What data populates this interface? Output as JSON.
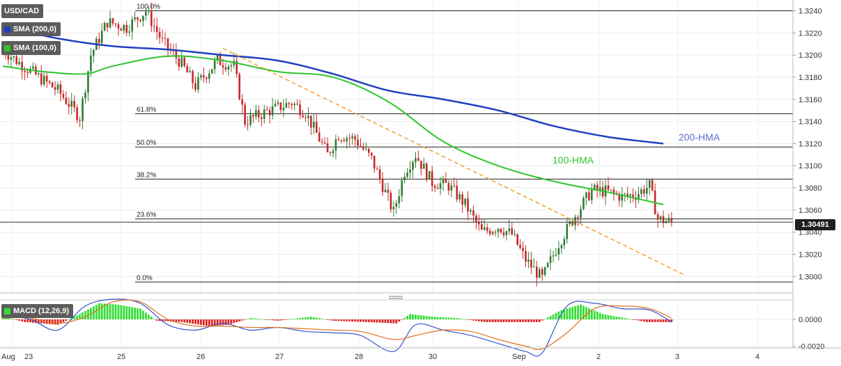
{
  "chart_data": {
    "type": "candlestick",
    "symbol": "USD/CAD",
    "indicators": {
      "sma200": "SMA (200,0)",
      "sma100": "SMA (100,0)",
      "macd": "MACD (12,26,9)"
    },
    "x_ticks": [
      "Aug",
      "23",
      "25",
      "26",
      "27",
      "28",
      "30",
      "Sep",
      "2",
      "3",
      "4"
    ],
    "y_ticks": [
      "1.3240",
      "1.3220",
      "1.3200",
      "1.3180",
      "1.3160",
      "1.3140",
      "1.3120",
      "1.3100",
      "1.3080",
      "1.3060",
      "1.3040",
      "1.3020",
      "1.3000"
    ],
    "ylim": [
      1.2989,
      1.3254
    ],
    "macd_ticks": [
      "0.0000",
      "-0.0020"
    ],
    "current_price": "1.30491",
    "current_price_value": 1.30491,
    "fib_levels": [
      {
        "label": "100.0%",
        "price": 1.324
      },
      {
        "label": "61.8%",
        "price": 1.3147
      },
      {
        "label": "50.0%",
        "price": 1.3117
      },
      {
        "label": "38.2%",
        "price": 1.3088
      },
      {
        "label": "23.6%",
        "price": 1.3052
      },
      {
        "label": "0.0%",
        "price": 1.2995
      }
    ],
    "hma_labels": {
      "hma200": "200-HMA",
      "hma100": "100-HMA"
    },
    "colors": {
      "hma200": "#1f3fbf",
      "hma100": "#2ec42e",
      "trendline": "#f0a030",
      "candle_up": "#2e7d32",
      "candle_down": "#c62828",
      "macd_pos": "#33dd33",
      "macd_neg": "#dd2222",
      "macd_line": "#3355cc",
      "signal_line": "#e07020"
    },
    "trendline": {
      "start": {
        "bar": 80,
        "price": 1.3206
      },
      "end": {
        "bar": 248,
        "price": 1.3001
      }
    },
    "hma200": [
      [
        0,
        1.3226
      ],
      [
        20,
        1.3215
      ],
      [
        40,
        1.3208
      ],
      [
        60,
        1.3205
      ],
      [
        80,
        1.32
      ],
      [
        100,
        1.3195
      ],
      [
        120,
        1.3183
      ],
      [
        140,
        1.3168
      ],
      [
        160,
        1.316
      ],
      [
        180,
        1.315
      ],
      [
        200,
        1.3136
      ],
      [
        220,
        1.3126
      ],
      [
        240,
        1.312
      ]
    ],
    "hma100": [
      [
        0,
        1.319
      ],
      [
        15,
        1.3185
      ],
      [
        30,
        1.3183
      ],
      [
        40,
        1.319
      ],
      [
        60,
        1.3199
      ],
      [
        80,
        1.3195
      ],
      [
        100,
        1.3185
      ],
      [
        120,
        1.318
      ],
      [
        140,
        1.3158
      ],
      [
        160,
        1.3122
      ],
      [
        180,
        1.31
      ],
      [
        200,
        1.3086
      ],
      [
        220,
        1.3076
      ],
      [
        240,
        1.3065
      ]
    ],
    "candle_path": [
      [
        0,
        1.3205
      ],
      [
        5,
        1.3195
      ],
      [
        12,
        1.3182
      ],
      [
        20,
        1.3168
      ],
      [
        28,
        1.3144
      ],
      [
        32,
        1.32
      ],
      [
        38,
        1.323
      ],
      [
        45,
        1.3225
      ],
      [
        52,
        1.324
      ],
      [
        58,
        1.3212
      ],
      [
        65,
        1.3192
      ],
      [
        70,
        1.3172
      ],
      [
        78,
        1.3195
      ],
      [
        84,
        1.319
      ],
      [
        88,
        1.314
      ],
      [
        95,
        1.3148
      ],
      [
        105,
        1.3157
      ],
      [
        110,
        1.3148
      ],
      [
        118,
        1.311
      ],
      [
        122,
        1.3128
      ],
      [
        128,
        1.3124
      ],
      [
        134,
        1.3106
      ],
      [
        142,
        1.3058
      ],
      [
        146,
        1.3095
      ],
      [
        150,
        1.311
      ],
      [
        156,
        1.3085
      ],
      [
        162,
        1.3082
      ],
      [
        168,
        1.3065
      ],
      [
        174,
        1.304
      ],
      [
        180,
        1.3045
      ],
      [
        185,
        1.3038
      ],
      [
        190,
        1.3015
      ],
      [
        196,
        1.2998
      ],
      [
        202,
        1.303
      ],
      [
        208,
        1.3055
      ],
      [
        214,
        1.3078
      ],
      [
        219,
        1.3077
      ],
      [
        225,
        1.3072
      ],
      [
        230,
        1.3074
      ],
      [
        235,
        1.3082
      ],
      [
        238,
        1.3052
      ],
      [
        243,
        1.3049
      ]
    ],
    "macd_hist": [
      [
        0,
        0.0002
      ],
      [
        8,
        -0.0002
      ],
      [
        20,
        -0.0004
      ],
      [
        28,
        0.0004
      ],
      [
        35,
        0.0012
      ],
      [
        42,
        0.0011
      ],
      [
        50,
        0.0008
      ],
      [
        56,
        -0.0001
      ],
      [
        65,
        -0.0002
      ],
      [
        75,
        -0.0005
      ],
      [
        82,
        -0.0004
      ],
      [
        90,
        0.0001
      ],
      [
        100,
        -0.0001
      ],
      [
        112,
        0.0002
      ],
      [
        120,
        -0.0001
      ],
      [
        132,
        -0.0002
      ],
      [
        143,
        -0.0003
      ],
      [
        148,
        0.0004
      ],
      [
        156,
        0.0002
      ],
      [
        165,
        0.0001
      ],
      [
        175,
        -0.0002
      ],
      [
        185,
        -0.0002
      ],
      [
        195,
        -0.0002
      ],
      [
        203,
        0.0007
      ],
      [
        210,
        0.0011
      ],
      [
        218,
        0.0004
      ],
      [
        226,
        0.0001
      ],
      [
        234,
        -0.0002
      ],
      [
        243,
        -0.0002
      ]
    ],
    "macd_line": [
      [
        0,
        0.0003
      ],
      [
        10,
        0.0
      ],
      [
        20,
        -0.0008
      ],
      [
        30,
        0.001
      ],
      [
        40,
        0.0015
      ],
      [
        50,
        0.0012
      ],
      [
        60,
        -0.0004
      ],
      [
        70,
        -0.0008
      ],
      [
        80,
        -0.0003
      ],
      [
        90,
        -0.0008
      ],
      [
        100,
        -0.0006
      ],
      [
        110,
        -0.0009
      ],
      [
        120,
        -0.001
      ],
      [
        130,
        -0.0012
      ],
      [
        142,
        -0.0024
      ],
      [
        150,
        -0.0004
      ],
      [
        160,
        -0.0008
      ],
      [
        170,
        -0.0012
      ],
      [
        180,
        -0.0018
      ],
      [
        190,
        -0.0024
      ],
      [
        196,
        -0.0025
      ],
      [
        205,
        0.001
      ],
      [
        215,
        0.0012
      ],
      [
        225,
        0.0008
      ],
      [
        235,
        0.0007
      ],
      [
        243,
        -0.0002
      ]
    ],
    "signal_line": [
      [
        0,
        0.0001
      ],
      [
        10,
        0.0001
      ],
      [
        20,
        -0.0003
      ],
      [
        30,
        0.0002
      ],
      [
        40,
        0.0013
      ],
      [
        50,
        0.0013
      ],
      [
        60,
        0.0
      ],
      [
        70,
        -0.0005
      ],
      [
        80,
        -0.0005
      ],
      [
        90,
        -0.0006
      ],
      [
        100,
        -0.0006
      ],
      [
        110,
        -0.0007
      ],
      [
        120,
        -0.0008
      ],
      [
        130,
        -0.0009
      ],
      [
        142,
        -0.0015
      ],
      [
        150,
        -0.0012
      ],
      [
        160,
        -0.0008
      ],
      [
        170,
        -0.0009
      ],
      [
        180,
        -0.0015
      ],
      [
        190,
        -0.002
      ],
      [
        196,
        -0.0022
      ],
      [
        205,
        -0.001
      ],
      [
        215,
        0.0008
      ],
      [
        225,
        0.001
      ],
      [
        235,
        0.0008
      ],
      [
        243,
        0.0001
      ]
    ],
    "macd_ylim": [
      -0.0028,
      0.0018
    ]
  }
}
